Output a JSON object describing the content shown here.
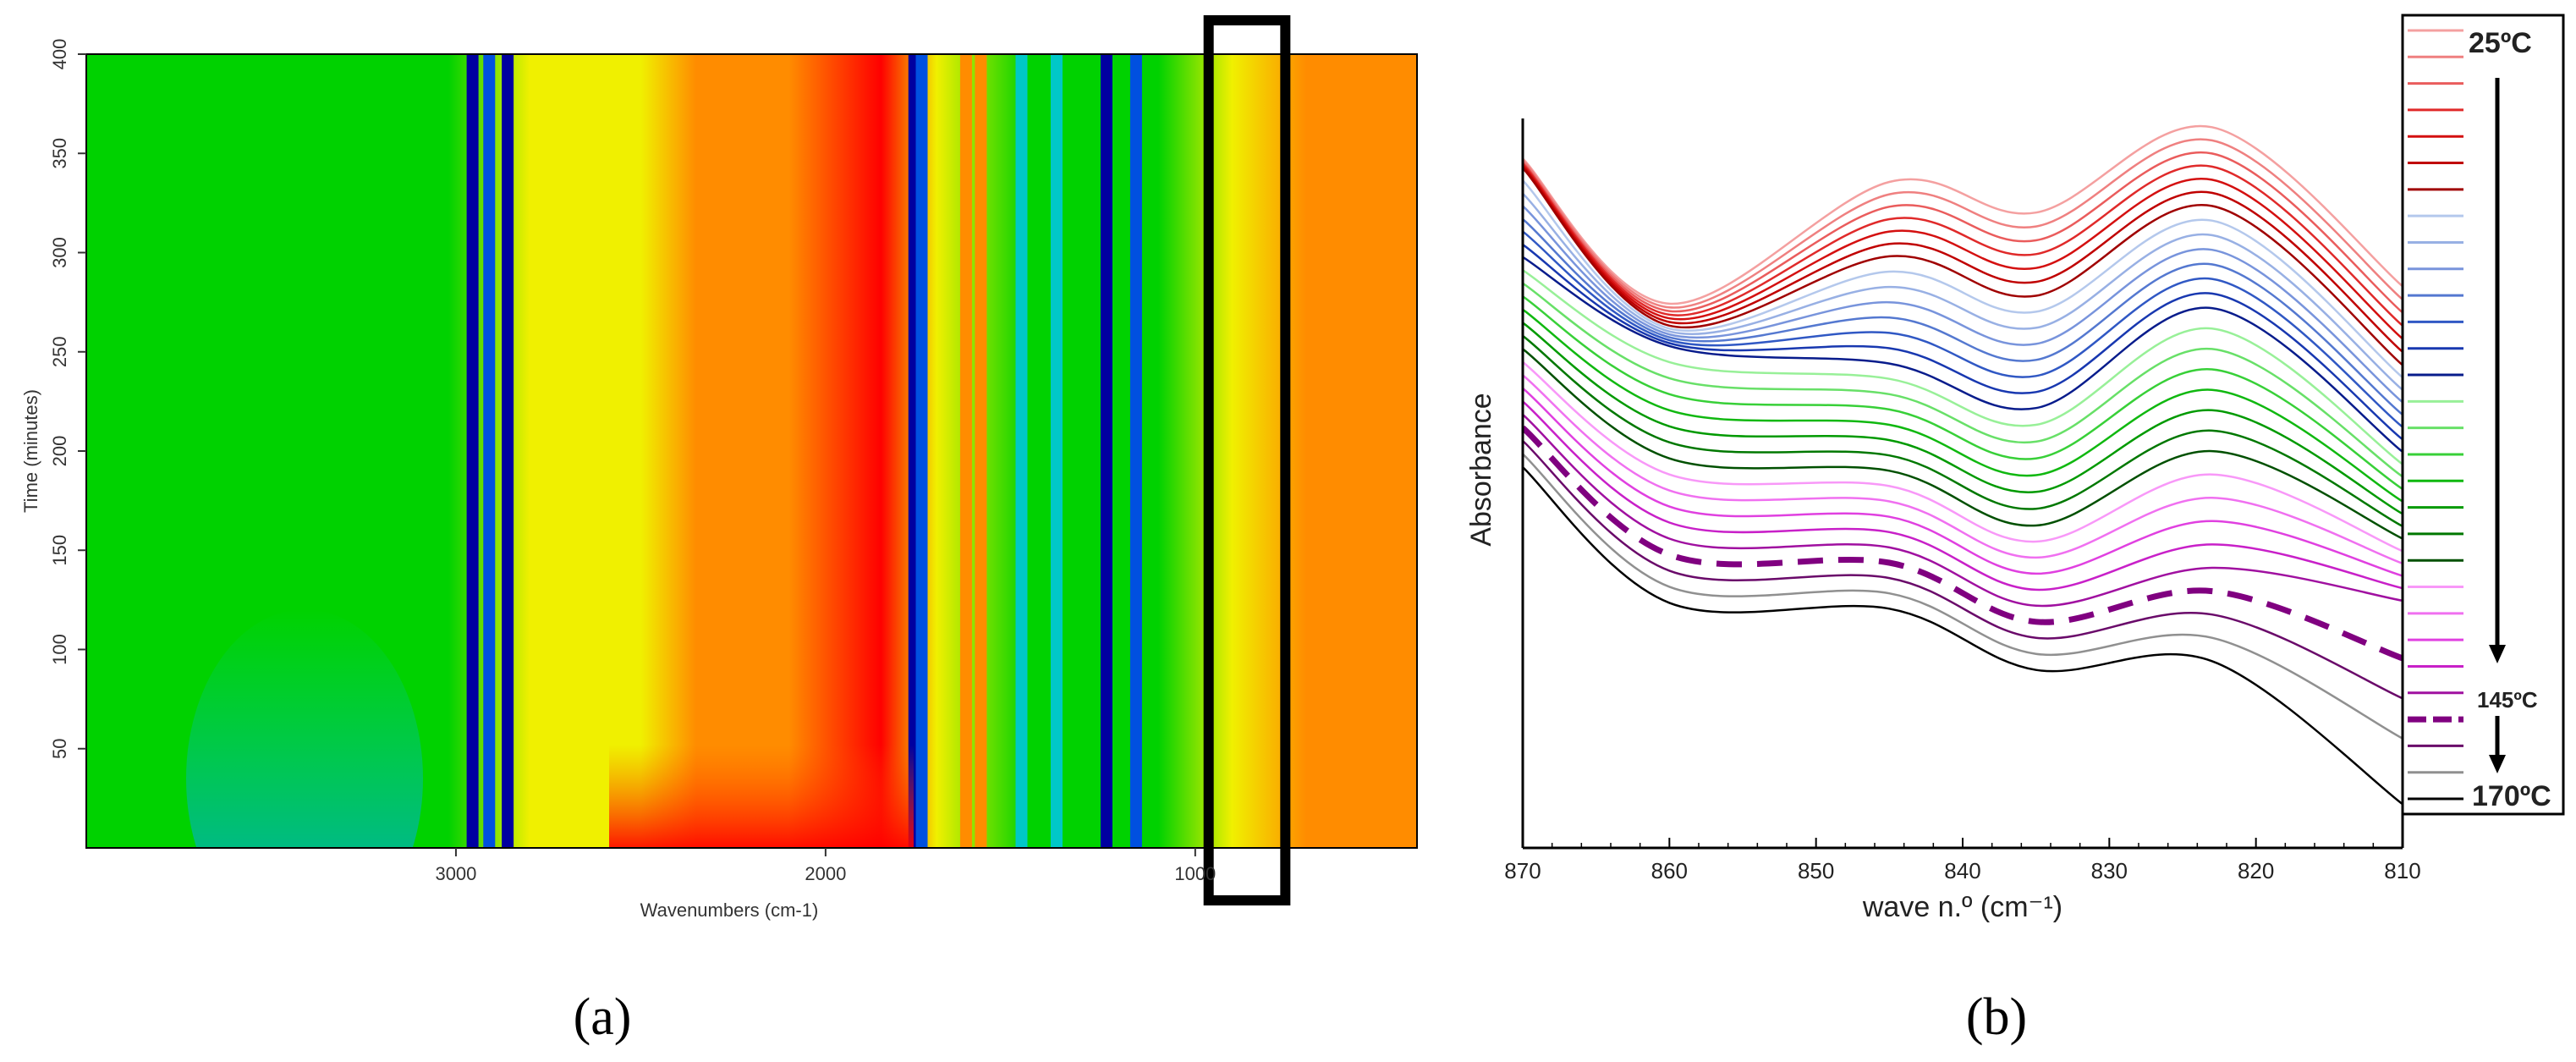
{
  "chart_data": [
    {
      "panel_label": "(a)",
      "type": "heatmap",
      "xlabel": "Wavenumbers (cm-1)",
      "ylabel": "Time (minutes)",
      "xlim": [
        4000,
        400
      ],
      "ylim": [
        0,
        400
      ],
      "x_ticks": [
        3000,
        2000,
        1000
      ],
      "y_ticks": [
        400,
        350,
        300,
        250,
        200,
        150,
        100,
        50
      ],
      "colormap": [
        "#0000a0",
        "#0050e0",
        "#00c8c8",
        "#00d200",
        "#f0f000",
        "#ff8c00",
        "#ff0000"
      ],
      "highlight_box": {
        "x_range": [
          950,
          770
        ],
        "y_range": [
          0,
          400
        ]
      },
      "bands": [
        {
          "wavenumber": 2955,
          "level": 0.02
        },
        {
          "wavenumber": 2910,
          "level": 0.1
        },
        {
          "wavenumber": 2860,
          "level": 0.05
        },
        {
          "wavenumber": 1760,
          "level": 0.02
        },
        {
          "wavenumber": 1740,
          "level": 0.1
        },
        {
          "wavenumber": 1620,
          "level": 0.85
        },
        {
          "wavenumber": 1580,
          "level": 0.75
        },
        {
          "wavenumber": 1470,
          "level": 0.3
        },
        {
          "wavenumber": 1375,
          "level": 0.35
        },
        {
          "wavenumber": 1240,
          "level": 0.05
        },
        {
          "wavenumber": 1160,
          "level": 0.1
        }
      ]
    },
    {
      "panel_label": "(b)",
      "type": "line",
      "xlabel": "wave n.º (cm⁻¹)",
      "ylabel": "Absorbance",
      "xlim": [
        870,
        810
      ],
      "x_ticks": [
        870,
        860,
        850,
        840,
        830,
        820,
        810
      ],
      "ylim": [
        0,
        1
      ],
      "legend": {
        "placement": "right",
        "labels": [
          "25ºC",
          "145ºC",
          "170ºC"
        ],
        "colors": [
          "#f4a0a0",
          "#ef8080",
          "#ea5c5c",
          "#e02a2a",
          "#d41010",
          "#c00000",
          "#a00000",
          "#b4c8ec",
          "#98b0e4",
          "#7894dc",
          "#5478d0",
          "#3058c4",
          "#1838b0",
          "#081c8c",
          "#98f098",
          "#68e068",
          "#38d038",
          "#10b810",
          "#009a00",
          "#007800",
          "#005000",
          "#f898f8",
          "#f070f0",
          "#e040e0",
          "#c820c8",
          "#a010a0",
          "#800080",
          "#6a0a6a",
          "#909090",
          "#000000"
        ]
      },
      "series": [
        {
          "style": "solid",
          "color": "#f4a0a0",
          "values": [
            0.945,
            0.746,
            0.913,
            0.871,
            0.988,
            0.77
          ]
        },
        {
          "style": "solid",
          "color": "#ef8080",
          "values": [
            0.943,
            0.741,
            0.896,
            0.852,
            0.97,
            0.752
          ]
        },
        {
          "style": "solid",
          "color": "#ea5c5c",
          "values": [
            0.94,
            0.736,
            0.879,
            0.833,
            0.952,
            0.734
          ]
        },
        {
          "style": "solid",
          "color": "#e02a2a",
          "values": [
            0.938,
            0.731,
            0.862,
            0.814,
            0.934,
            0.716
          ]
        },
        {
          "style": "solid",
          "color": "#d41010",
          "values": [
            0.936,
            0.726,
            0.845,
            0.795,
            0.916,
            0.698
          ]
        },
        {
          "style": "solid",
          "color": "#c00000",
          "values": [
            0.934,
            0.721,
            0.828,
            0.776,
            0.898,
            0.68
          ]
        },
        {
          "style": "solid",
          "color": "#a00000",
          "values": [
            0.932,
            0.716,
            0.811,
            0.757,
            0.88,
            0.662
          ]
        },
        {
          "style": "solid",
          "color": "#b4c8ec",
          "values": [
            0.915,
            0.712,
            0.79,
            0.735,
            0.86,
            0.645
          ]
        },
        {
          "style": "solid",
          "color": "#98b0e4",
          "values": [
            0.897,
            0.708,
            0.769,
            0.713,
            0.84,
            0.628
          ]
        },
        {
          "style": "solid",
          "color": "#7894dc",
          "values": [
            0.88,
            0.704,
            0.748,
            0.691,
            0.82,
            0.611
          ]
        },
        {
          "style": "solid",
          "color": "#5478d0",
          "values": [
            0.862,
            0.7,
            0.727,
            0.669,
            0.8,
            0.594
          ]
        },
        {
          "style": "solid",
          "color": "#3058c4",
          "values": [
            0.845,
            0.696,
            0.706,
            0.647,
            0.78,
            0.577
          ]
        },
        {
          "style": "solid",
          "color": "#1838b0",
          "values": [
            0.827,
            0.692,
            0.685,
            0.625,
            0.76,
            0.56
          ]
        },
        {
          "style": "solid",
          "color": "#081c8c",
          "values": [
            0.81,
            0.688,
            0.664,
            0.603,
            0.74,
            0.543
          ]
        },
        {
          "style": "solid",
          "color": "#98f098",
          "values": [
            0.792,
            0.666,
            0.643,
            0.58,
            0.712,
            0.526
          ]
        },
        {
          "style": "solid",
          "color": "#68e068",
          "values": [
            0.774,
            0.644,
            0.622,
            0.557,
            0.684,
            0.509
          ]
        },
        {
          "style": "solid",
          "color": "#38d038",
          "values": [
            0.756,
            0.622,
            0.601,
            0.534,
            0.656,
            0.492
          ]
        },
        {
          "style": "solid",
          "color": "#10b810",
          "values": [
            0.738,
            0.6,
            0.58,
            0.511,
            0.628,
            0.475
          ]
        },
        {
          "style": "solid",
          "color": "#009a00",
          "values": [
            0.72,
            0.578,
            0.559,
            0.488,
            0.6,
            0.458
          ]
        },
        {
          "style": "solid",
          "color": "#007800",
          "values": [
            0.702,
            0.556,
            0.538,
            0.465,
            0.572,
            0.441
          ]
        },
        {
          "style": "solid",
          "color": "#005000",
          "values": [
            0.684,
            0.534,
            0.517,
            0.442,
            0.544,
            0.424
          ]
        },
        {
          "style": "solid",
          "color": "#f898f8",
          "values": [
            0.666,
            0.512,
            0.496,
            0.42,
            0.512,
            0.407
          ]
        },
        {
          "style": "solid",
          "color": "#f070f0",
          "values": [
            0.648,
            0.49,
            0.475,
            0.398,
            0.48,
            0.39
          ]
        },
        {
          "style": "solid",
          "color": "#e040e0",
          "values": [
            0.63,
            0.468,
            0.454,
            0.376,
            0.448,
            0.373
          ]
        },
        {
          "style": "solid",
          "color": "#c820c8",
          "values": [
            0.612,
            0.446,
            0.433,
            0.354,
            0.416,
            0.356
          ]
        },
        {
          "style": "solid",
          "color": "#a010a0",
          "values": [
            0.594,
            0.424,
            0.412,
            0.332,
            0.384,
            0.339
          ]
        },
        {
          "style": "dashed",
          "color": "#800080",
          "values": [
            0.576,
            0.402,
            0.391,
            0.31,
            0.352,
            0.26
          ]
        },
        {
          "style": "solid",
          "color": "#6a0a6a",
          "values": [
            0.558,
            0.38,
            0.37,
            0.288,
            0.32,
            0.205
          ]
        },
        {
          "style": "solid",
          "color": "#909090",
          "values": [
            0.54,
            0.358,
            0.349,
            0.266,
            0.288,
            0.15
          ]
        },
        {
          "style": "solid",
          "color": "#000000",
          "values": [
            0.522,
            0.336,
            0.328,
            0.244,
            0.256,
            0.06
          ]
        }
      ]
    }
  ]
}
